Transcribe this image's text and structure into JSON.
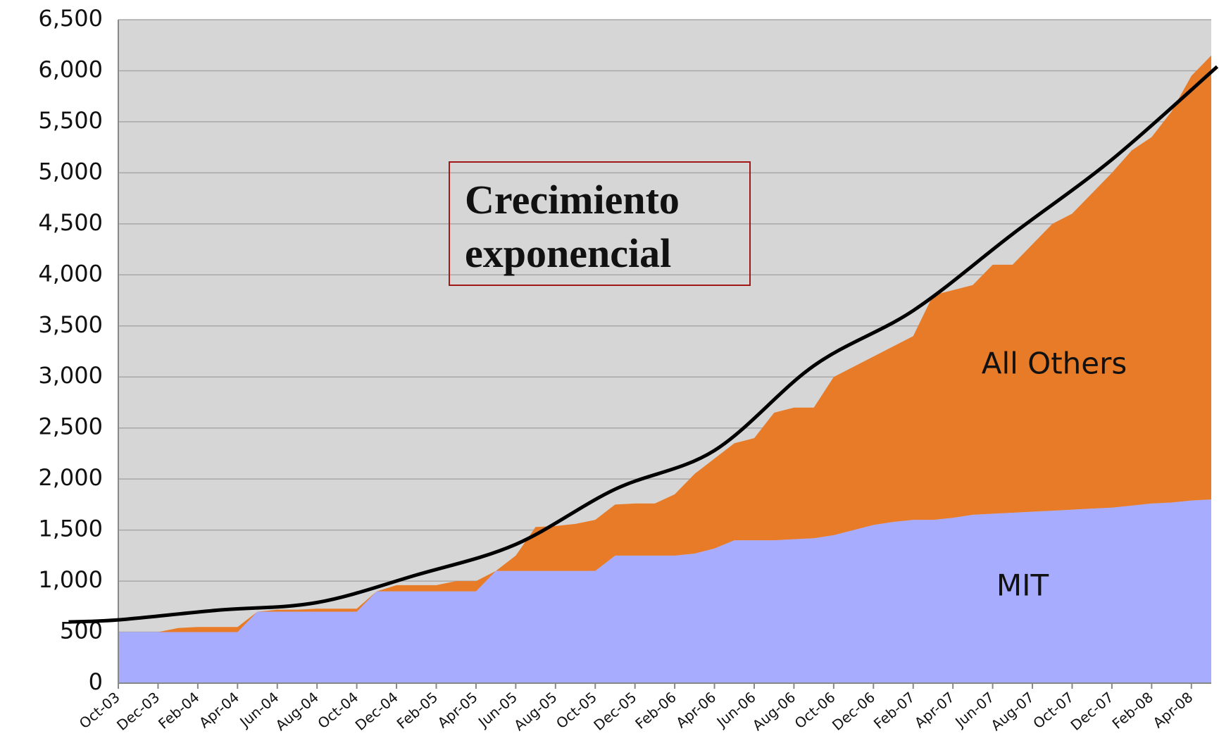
{
  "chart_data": {
    "type": "stacked_area",
    "categories": [
      "Oct-03",
      null,
      "Dec-03",
      null,
      "Feb-04",
      null,
      "Apr-04",
      null,
      "Jun-04",
      null,
      "Aug-04",
      null,
      "Oct-04",
      null,
      "Dec-04",
      null,
      "Feb-05",
      null,
      "Apr-05",
      null,
      "Jun-05",
      null,
      "Aug-05",
      null,
      "Oct-05",
      null,
      "Dec-05",
      null,
      "Feb-06",
      null,
      "Apr-06",
      null,
      "Jun-06",
      null,
      "Aug-06",
      null,
      "Oct-06",
      null,
      "Dec-06",
      null,
      "Feb-07",
      null,
      "Apr-07",
      null,
      "Jun-07",
      null,
      "Aug-07",
      null,
      "Oct-07",
      null,
      "Dec-07",
      null,
      "Feb-08",
      null,
      "Apr-08",
      null
    ],
    "series": [
      {
        "name": "MIT",
        "color": "#a8acff",
        "values": [
          500,
          500,
          500,
          500,
          500,
          500,
          500,
          700,
          700,
          700,
          700,
          700,
          700,
          900,
          900,
          900,
          900,
          900,
          900,
          1100,
          1100,
          1100,
          1100,
          1100,
          1100,
          1250,
          1250,
          1250,
          1250,
          1270,
          1320,
          1400,
          1400,
          1400,
          1410,
          1420,
          1450,
          1500,
          1550,
          1580,
          1600,
          1600,
          1620,
          1650,
          1660,
          1670,
          1680,
          1690,
          1700,
          1710,
          1720,
          1740,
          1760,
          1770,
          1790,
          1800
        ]
      },
      {
        "name": "All Others",
        "color": "#e87b28",
        "values": [
          0,
          0,
          0,
          40,
          50,
          50,
          50,
          0,
          20,
          20,
          30,
          30,
          30,
          0,
          60,
          60,
          60,
          100,
          100,
          0,
          150,
          430,
          440,
          460,
          500,
          500,
          510,
          510,
          600,
          780,
          880,
          950,
          1000,
          1250,
          1290,
          1280,
          1550,
          1600,
          1650,
          1720,
          1800,
          2200,
          2230,
          2250,
          2440,
          2430,
          2620,
          2810,
          2900,
          3090,
          3280,
          3480,
          3590,
          3830,
          4160,
          4350
        ]
      }
    ],
    "trend": {
      "color": "#000000",
      "x": [
        -2.5,
        0,
        5,
        10,
        15,
        20,
        25,
        30,
        35,
        40,
        45,
        50,
        55.3
      ],
      "values": [
        600,
        620,
        715,
        790,
        1060,
        1360,
        1900,
        2280,
        3110,
        3650,
        4400,
        5130,
        6040
      ]
    },
    "annotation": [
      "Crecimiento",
      "exponencial"
    ],
    "ylim": [
      0,
      6500
    ],
    "yticks": [
      0,
      500,
      {
        "value": 1000,
        "label": "1,000"
      },
      {
        "value": 1500,
        "label": "1,500"
      },
      {
        "value": 2000,
        "label": "2,000"
      },
      {
        "value": 2500,
        "label": "2,500"
      },
      {
        "value": 3000,
        "label": "3,000"
      },
      {
        "value": 3500,
        "label": "3,500"
      },
      {
        "value": 4000,
        "label": "4,000"
      },
      {
        "value": 4500,
        "label": "4,500"
      },
      {
        "value": 5000,
        "label": "5,000"
      },
      {
        "value": 5500,
        "label": "5,500"
      },
      {
        "value": 6000,
        "label": "6,000"
      },
      {
        "value": 6500,
        "label": "6,500"
      }
    ],
    "grid": true
  }
}
